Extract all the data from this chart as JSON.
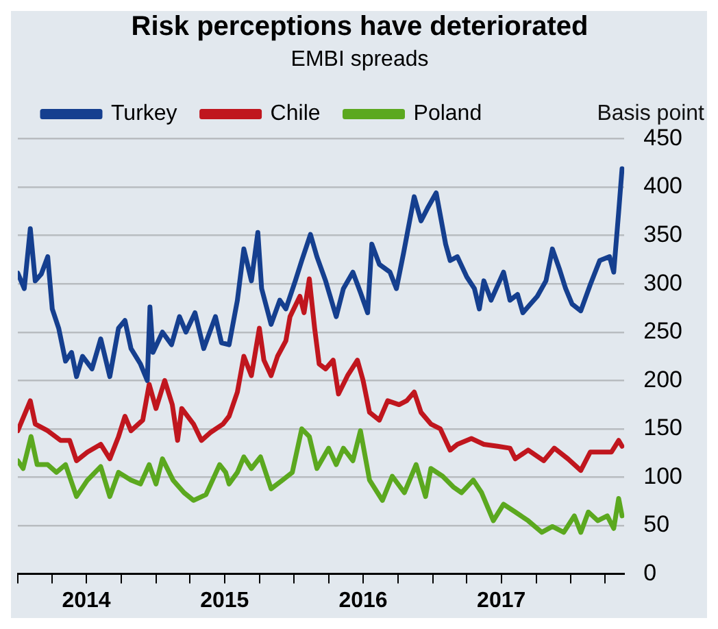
{
  "chart_data": {
    "type": "line",
    "title": "Risk perceptions have deteriorated",
    "subtitle": "EMBI spreads",
    "ylabel": "Basis point",
    "xlim": [
      "2014-01-01",
      "2018-05-22"
    ],
    "xticks": [
      {
        "value": "2014-01-01",
        "label": null
      },
      {
        "value": "2014-04-01",
        "label": null
      },
      {
        "value": "2014-07-01",
        "label": "2014"
      },
      {
        "value": "2014-10-01",
        "label": null
      },
      {
        "value": "2015-01-01",
        "label": null
      },
      {
        "value": "2015-04-01",
        "label": null
      },
      {
        "value": "2015-07-01",
        "label": "2015"
      },
      {
        "value": "2015-10-01",
        "label": null
      },
      {
        "value": "2016-01-01",
        "label": null
      },
      {
        "value": "2016-04-01",
        "label": null
      },
      {
        "value": "2016-07-01",
        "label": "2016"
      },
      {
        "value": "2016-10-01",
        "label": null
      },
      {
        "value": "2017-01-01",
        "label": null
      },
      {
        "value": "2017-04-01",
        "label": null
      },
      {
        "value": "2017-07-01",
        "label": "2017"
      },
      {
        "value": "2017-10-01",
        "label": null
      },
      {
        "value": "2018-01-01",
        "label": null
      },
      {
        "value": "2018-04-01",
        "label": null
      }
    ],
    "ylim": [
      0,
      450
    ],
    "yticks": [
      0,
      50,
      100,
      150,
      200,
      250,
      300,
      350,
      400,
      450
    ],
    "grid": "y",
    "legend": "top left",
    "line_style": "solid",
    "series": [
      {
        "name": "Turkey",
        "color": "#153f8f",
        "x": [
          "2014-01-01",
          "2014-01-18",
          "2014-02-03",
          "2014-02-16",
          "2014-03-04",
          "2014-03-21",
          "2014-04-02",
          "2014-04-19",
          "2014-05-07",
          "2014-05-23",
          "2014-06-05",
          "2014-06-21",
          "2014-07-16",
          "2014-08-08",
          "2014-09-01",
          "2014-09-24",
          "2014-10-11",
          "2014-10-27",
          "2014-11-21",
          "2014-12-09",
          "2014-12-16",
          "2014-12-24",
          "2015-01-18",
          "2015-02-11",
          "2015-03-04",
          "2015-03-21",
          "2015-04-14",
          "2015-05-07",
          "2015-06-07",
          "2015-06-23",
          "2015-07-13",
          "2015-08-04",
          "2015-08-21",
          "2015-09-10",
          "2015-09-27",
          "2015-10-07",
          "2015-11-01",
          "2015-11-24",
          "2015-12-10",
          "2016-01-04",
          "2016-01-21",
          "2016-02-13",
          "2016-03-01",
          "2016-03-24",
          "2016-04-21",
          "2016-05-10",
          "2016-06-04",
          "2016-06-24",
          "2016-07-13",
          "2016-07-24",
          "2016-08-13",
          "2016-09-10",
          "2016-09-27",
          "2016-10-16",
          "2016-11-13",
          "2016-12-01",
          "2016-12-18",
          "2017-01-10",
          "2017-02-04",
          "2017-02-16",
          "2017-03-07",
          "2017-04-01",
          "2017-04-21",
          "2017-05-04",
          "2017-05-16",
          "2017-06-04",
          "2017-07-07",
          "2017-07-24",
          "2017-08-13",
          "2017-08-27",
          "2017-09-16",
          "2017-10-04",
          "2017-10-27",
          "2017-11-13",
          "2017-12-01",
          "2017-12-18",
          "2018-01-04",
          "2018-01-27",
          "2018-02-21",
          "2018-03-18",
          "2018-04-13",
          "2018-04-24",
          "2018-05-07",
          "2018-05-16"
        ],
        "values": [
          311,
          295,
          357,
          303,
          310,
          328,
          274,
          254,
          220,
          229,
          204,
          225,
          212,
          243,
          204,
          254,
          262,
          233,
          217,
          200,
          276,
          229,
          250,
          237,
          266,
          250,
          270,
          233,
          266,
          239,
          237,
          283,
          336,
          303,
          353,
          295,
          258,
          283,
          274,
          303,
          324,
          351,
          328,
          303,
          266,
          295,
          312,
          291,
          270,
          341,
          320,
          312,
          295,
          332,
          390,
          365,
          378,
          394,
          341,
          324,
          328,
          307,
          295,
          274,
          303,
          283,
          312,
          283,
          289,
          270,
          279,
          287,
          303,
          336,
          316,
          295,
          279,
          272,
          299,
          324,
          328,
          312,
          374,
          419
        ]
      },
      {
        "name": "Chile",
        "color": "#c0161e",
        "x": [
          "2014-01-01",
          "2014-02-03",
          "2014-02-16",
          "2014-03-21",
          "2014-04-24",
          "2014-05-18",
          "2014-06-05",
          "2014-07-04",
          "2014-08-08",
          "2014-09-01",
          "2014-09-24",
          "2014-10-11",
          "2014-10-27",
          "2014-11-27",
          "2014-12-14",
          "2015-01-01",
          "2015-01-24",
          "2015-02-13",
          "2015-02-27",
          "2015-03-10",
          "2015-04-10",
          "2015-05-01",
          "2015-05-24",
          "2015-06-27",
          "2015-07-13",
          "2015-08-04",
          "2015-08-21",
          "2015-09-10",
          "2015-10-01",
          "2015-10-13",
          "2015-11-01",
          "2015-11-18",
          "2015-12-10",
          "2015-12-21",
          "2016-01-16",
          "2016-01-27",
          "2016-02-10",
          "2016-02-24",
          "2016-03-07",
          "2016-03-24",
          "2016-04-13",
          "2016-04-27",
          "2016-05-21",
          "2016-06-16",
          "2016-07-01",
          "2016-07-18",
          "2016-08-13",
          "2016-09-04",
          "2016-10-04",
          "2016-10-24",
          "2016-11-13",
          "2016-12-01",
          "2016-12-27",
          "2017-01-21",
          "2017-02-16",
          "2017-03-07",
          "2017-04-13",
          "2017-05-16",
          "2017-06-21",
          "2017-07-24",
          "2017-08-07",
          "2017-09-10",
          "2017-10-21",
          "2017-11-18",
          "2017-12-24",
          "2018-01-27",
          "2018-02-21",
          "2018-03-18",
          "2018-04-18",
          "2018-05-07",
          "2018-05-16"
        ],
        "values": [
          148,
          179,
          155,
          148,
          138,
          138,
          117,
          126,
          134,
          119,
          142,
          163,
          148,
          159,
          196,
          171,
          200,
          175,
          138,
          171,
          155,
          138,
          146,
          155,
          163,
          188,
          225,
          205,
          254,
          221,
          205,
          225,
          241,
          266,
          287,
          270,
          305,
          254,
          217,
          212,
          221,
          186,
          205,
          221,
          200,
          167,
          159,
          179,
          175,
          179,
          188,
          167,
          155,
          150,
          128,
          134,
          140,
          134,
          132,
          130,
          119,
          128,
          117,
          130,
          119,
          107,
          126,
          126,
          126,
          138,
          132
        ]
      },
      {
        "name": "Poland",
        "color": "#5ba81f",
        "x": [
          "2014-01-01",
          "2014-01-15",
          "2014-02-05",
          "2014-02-21",
          "2014-03-21",
          "2014-04-13",
          "2014-05-07",
          "2014-06-05",
          "2014-07-04",
          "2014-08-08",
          "2014-09-01",
          "2014-09-24",
          "2014-10-27",
          "2014-11-21",
          "2014-12-14",
          "2015-01-01",
          "2015-01-18",
          "2015-02-15",
          "2015-03-16",
          "2015-04-10",
          "2015-05-13",
          "2015-06-18",
          "2015-07-04",
          "2015-07-13",
          "2015-08-04",
          "2015-08-21",
          "2015-09-10",
          "2015-10-04",
          "2015-11-01",
          "2015-12-01",
          "2015-12-27",
          "2016-01-21",
          "2016-02-10",
          "2016-03-01",
          "2016-04-01",
          "2016-04-21",
          "2016-05-10",
          "2016-06-04",
          "2016-06-24",
          "2016-07-18",
          "2016-08-21",
          "2016-09-16",
          "2016-10-18",
          "2016-11-18",
          "2016-12-13",
          "2016-12-27",
          "2017-01-27",
          "2017-02-24",
          "2017-03-18",
          "2017-04-18",
          "2017-05-10",
          "2017-06-10",
          "2017-07-07",
          "2017-08-07",
          "2017-09-10",
          "2017-10-16",
          "2017-11-13",
          "2017-12-13",
          "2018-01-10",
          "2018-01-27",
          "2018-02-16",
          "2018-03-13",
          "2018-04-07",
          "2018-04-24",
          "2018-05-07",
          "2018-05-16"
        ],
        "values": [
          117,
          109,
          142,
          113,
          113,
          105,
          113,
          80,
          97,
          111,
          80,
          105,
          97,
          93,
          113,
          93,
          119,
          97,
          84,
          76,
          82,
          113,
          105,
          93,
          105,
          121,
          109,
          121,
          88,
          97,
          105,
          150,
          142,
          109,
          130,
          113,
          130,
          117,
          148,
          97,
          76,
          101,
          84,
          113,
          80,
          109,
          101,
          90,
          84,
          97,
          84,
          55,
          72,
          64,
          55,
          43,
          49,
          43,
          60,
          43,
          64,
          55,
          60,
          47,
          78,
          60
        ]
      }
    ]
  }
}
